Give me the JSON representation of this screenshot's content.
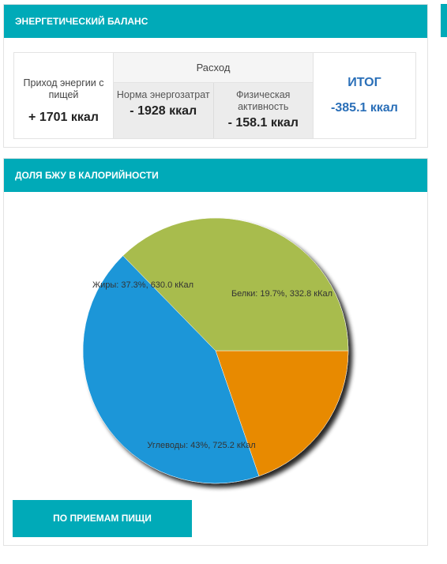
{
  "energy": {
    "header": "ЭНЕРГЕТИЧЕСКИЙ БАЛАНС",
    "intake_label": "Приход энергии с пищей",
    "intake_value": "+ 1701 ккал",
    "expense_header": "Расход",
    "norm_label": "Норма энергозатрат",
    "norm_value": "- 1928 ккал",
    "activity_label": "Физическая активность",
    "activity_value": "- 158.1 ккал",
    "total_label": "ИТОГ",
    "total_value": "-385.1 ккал"
  },
  "bju": {
    "header": "ДОЛЯ БЖУ В КАЛОРИЙНОСТИ",
    "meals_button": "ПО ПРИЕМАМ ПИЩИ"
  },
  "chart_data": {
    "type": "pie",
    "slices": [
      {
        "name": "Белки",
        "percent": 19.7,
        "value": 332.8,
        "label": "Белки: 19.7%, 332.8 кКал",
        "color": "#e88a00"
      },
      {
        "name": "Углеводы",
        "percent": 43,
        "value": 725.2,
        "label": "Углеводы: 43%, 725.2 кКал",
        "color": "#1e96d8"
      },
      {
        "name": "Жиры",
        "percent": 37.3,
        "value": 630.0,
        "label": "Жиры: 37.3%, 630.0 кКал",
        "color": "#a8bc4e"
      }
    ],
    "start_angle_deg": 0,
    "direction": "clockwise"
  }
}
